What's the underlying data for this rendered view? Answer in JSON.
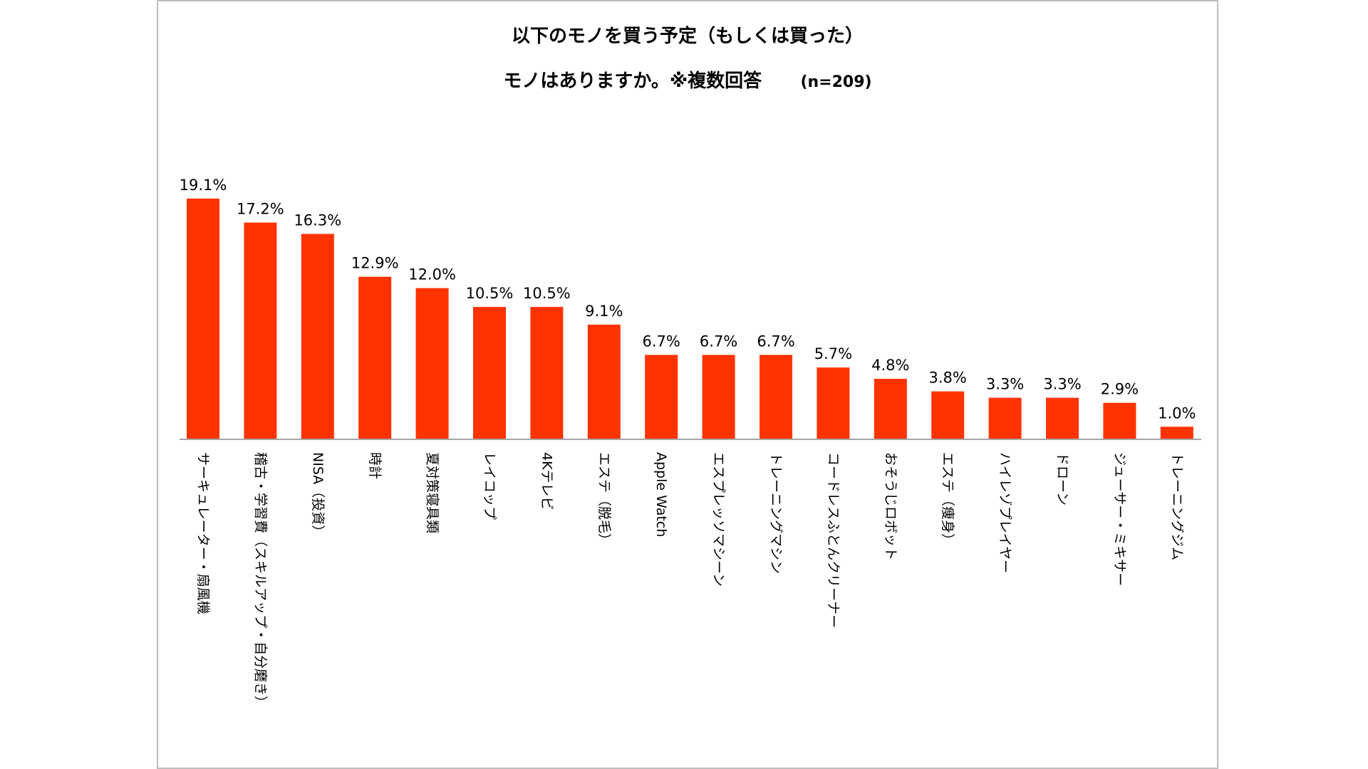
{
  "chart_data": {
    "type": "bar",
    "title_line1": "以下のモノを買う予定（もしくは買った）",
    "title_line2": "モノはありますか。※複数回答",
    "n_label": "(n=209)",
    "categories": [
      "サーキュレーター・扇風機",
      "稽古・学習費（スキルアップ・自分磨き）",
      "NISA（投資）",
      "時計",
      "夏対策寝具類",
      "レイコップ",
      "4Kテレビ",
      "エステ（脱毛）",
      "Apple Watch",
      "エスプレッソマシーン",
      "トレーニングマシン",
      "コードレスふとんクリーナー",
      "おそうじロボット",
      "エステ（痩身）",
      "ハイレゾプレイヤー",
      "ドローン",
      "ジューサー・ミキサー",
      "トレーニングジム"
    ],
    "values": [
      19.1,
      17.2,
      16.3,
      12.9,
      12.0,
      10.5,
      10.5,
      9.1,
      6.7,
      6.7,
      6.7,
      5.7,
      4.8,
      3.8,
      3.3,
      3.3,
      2.9,
      1.0
    ],
    "value_labels": [
      "19.1%",
      "17.2%",
      "16.3%",
      "12.9%",
      "12.0%",
      "10.5%",
      "10.5%",
      "9.1%",
      "6.7%",
      "6.7%",
      "6.7%",
      "5.7%",
      "4.8%",
      "3.8%",
      "3.3%",
      "3.3%",
      "2.9%",
      "1.0%"
    ],
    "unit": "%",
    "bar_color": "#ff3300",
    "axis_color": "#a6a6a6",
    "frame_color": "#bdbdbd",
    "grid": false,
    "legend": "none"
  }
}
